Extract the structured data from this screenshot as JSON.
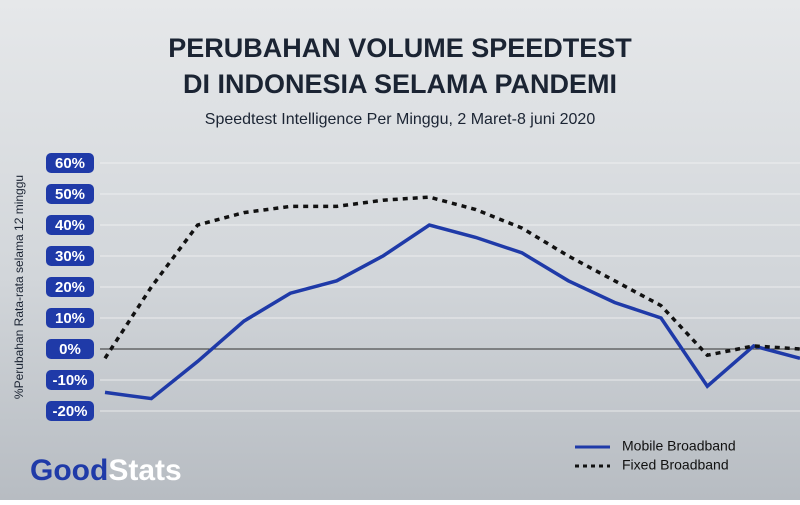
{
  "chart_data": {
    "type": "line",
    "title": [
      "PERUBAHAN VOLUME SPEEDTEST",
      "DI INDONESIA SELAMA PANDEMI"
    ],
    "subtitle": "Speedtest Intelligence Per Minggu, 2 Maret-8 juni 2020",
    "y_label": "%Perubahan Rata-rata selama 12 minggu",
    "brand": [
      "Good",
      "Stats"
    ],
    "categories": [
      null,
      null,
      null,
      null,
      null,
      null,
      null,
      null,
      null,
      null,
      null,
      null,
      null,
      null,
      null,
      null
    ],
    "series": [
      {
        "name": "Mobile Broadband",
        "color": "#1f3aa8",
        "dash": false,
        "values": [
          -14,
          -16,
          -4,
          9,
          18,
          22,
          30,
          40,
          36,
          31,
          22,
          15,
          10,
          -12,
          1,
          -3
        ]
      },
      {
        "name": "Fixed Broadband",
        "color": "#111111",
        "dash": true,
        "values": [
          -3,
          20,
          40,
          44,
          46,
          46,
          48,
          49,
          45,
          39,
          30,
          22,
          14,
          -2,
          1,
          0
        ]
      }
    ],
    "ylim": [
      -20,
      60
    ],
    "yticks": [
      {
        "value": -20,
        "label": "-20%"
      },
      {
        "value": -10,
        "label": "-10%"
      },
      {
        "value": 0,
        "label": "0%"
      },
      {
        "value": 10,
        "label": "10%"
      },
      {
        "value": 20,
        "label": "20%"
      },
      {
        "value": 30,
        "label": "30%"
      },
      {
        "value": 40,
        "label": "40%"
      },
      {
        "value": 50,
        "label": "50%"
      },
      {
        "value": 60,
        "label": "60%"
      }
    ],
    "grid": true
  }
}
